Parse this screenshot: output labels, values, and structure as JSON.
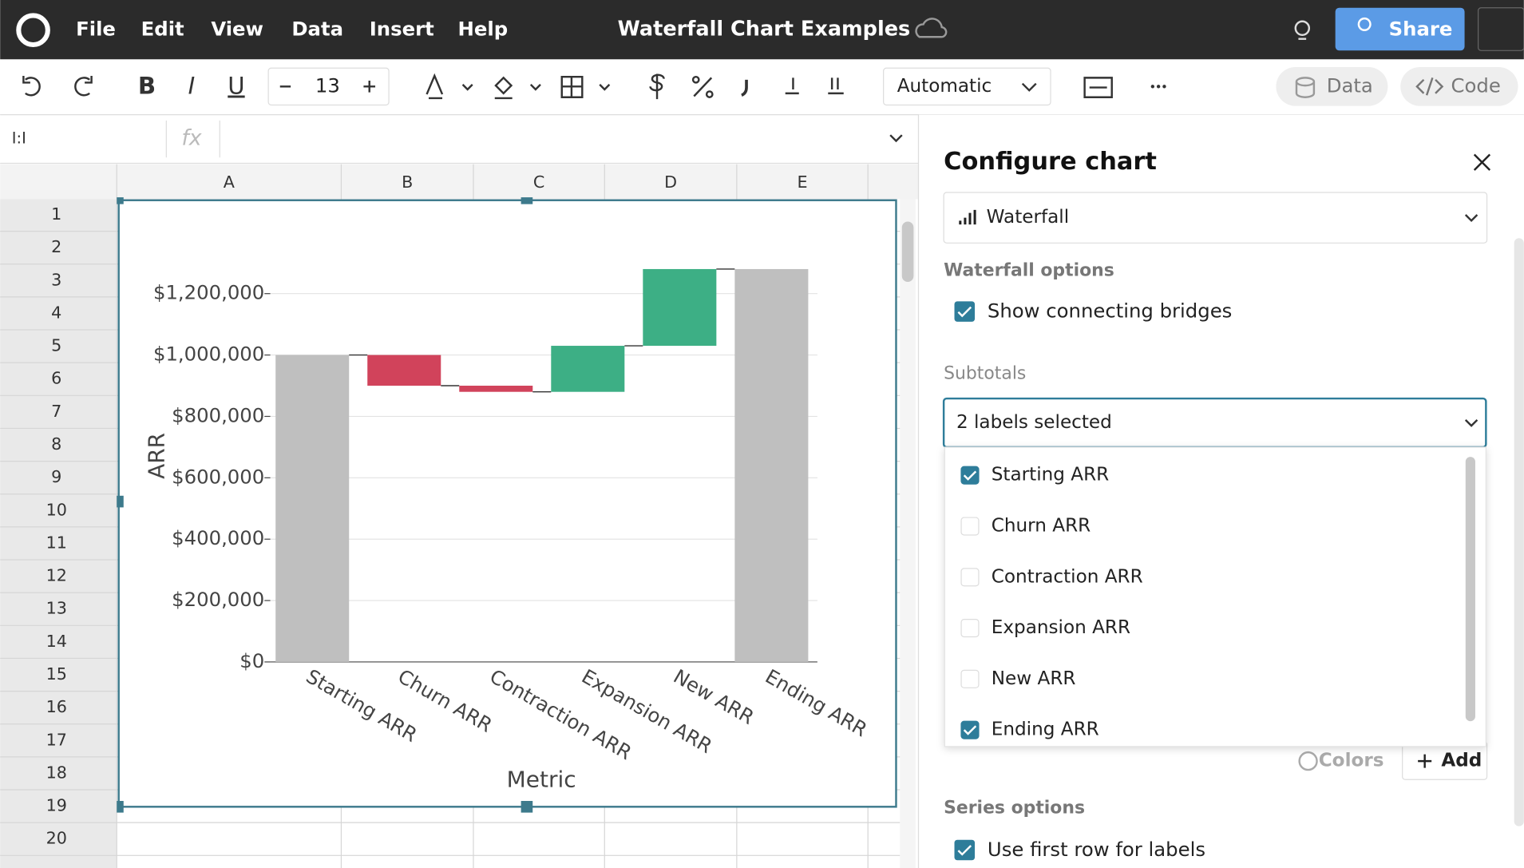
{
  "menu": [
    "File",
    "Edit",
    "View",
    "Data",
    "Insert",
    "Help"
  ],
  "doc_title": "Waterfall Chart Examples",
  "share": "Share",
  "toolbar": {
    "styles": [
      "B",
      "I",
      "U"
    ],
    "font_size": "13",
    "format": "Automatic",
    "data_button": "Data",
    "code_button": "Code"
  },
  "formula": {
    "cell_ref": "I:I",
    "fx": "fx"
  },
  "columns": [
    "A",
    "B",
    "C",
    "D",
    "E"
  ],
  "rows": [
    "1",
    "2",
    "3",
    "4",
    "5",
    "6",
    "7",
    "8",
    "9",
    "10",
    "11",
    "12",
    "13",
    "14",
    "15",
    "16",
    "17",
    "18",
    "19",
    "20"
  ],
  "chart_data": {
    "type": "waterfall",
    "x_label": "Metric",
    "y_label": "ARR",
    "categories": [
      "Starting ARR",
      "Churn ARR",
      "Contraction ARR",
      "Expansion ARR",
      "New ARR",
      "Ending ARR"
    ],
    "values": [
      1000000,
      -100000,
      -20000,
      150000,
      250000,
      1280000
    ],
    "totals": [
      true,
      false,
      false,
      false,
      false,
      true
    ],
    "colors": {
      "total": "#bfbfbf",
      "increase": "#3daf85",
      "decrease": "#d1435b"
    },
    "bridges": true,
    "grid": true,
    "ylim": [
      0,
      1300000
    ],
    "yticks": [
      {
        "value": 0,
        "label": "$0"
      },
      {
        "value": 200000,
        "label": "$200,000"
      },
      {
        "value": 400000,
        "label": "$400,000"
      },
      {
        "value": 600000,
        "label": "$600,000"
      },
      {
        "value": 800000,
        "label": "$800,000"
      },
      {
        "value": 1000000,
        "label": "$1,000,000"
      },
      {
        "value": 1200000,
        "label": "$1,200,000"
      }
    ]
  },
  "panel": {
    "title": "Configure chart",
    "chart_type": "Waterfall",
    "waterfall_options": "Waterfall options",
    "bridges_label": "Show connecting bridges",
    "subtotals_label": "Subtotals",
    "subtotals_value": "2 labels selected",
    "items": [
      {
        "label": "Starting ARR",
        "checked": true
      },
      {
        "label": "Churn ARR",
        "checked": false
      },
      {
        "label": "Contraction ARR",
        "checked": false
      },
      {
        "label": "Expansion ARR",
        "checked": false
      },
      {
        "label": "New ARR",
        "checked": false
      },
      {
        "label": "Ending ARR",
        "checked": true
      }
    ],
    "colors": "Colors",
    "add": "Add",
    "series_options": "Series options",
    "first_row_label": "Use first row for labels"
  }
}
